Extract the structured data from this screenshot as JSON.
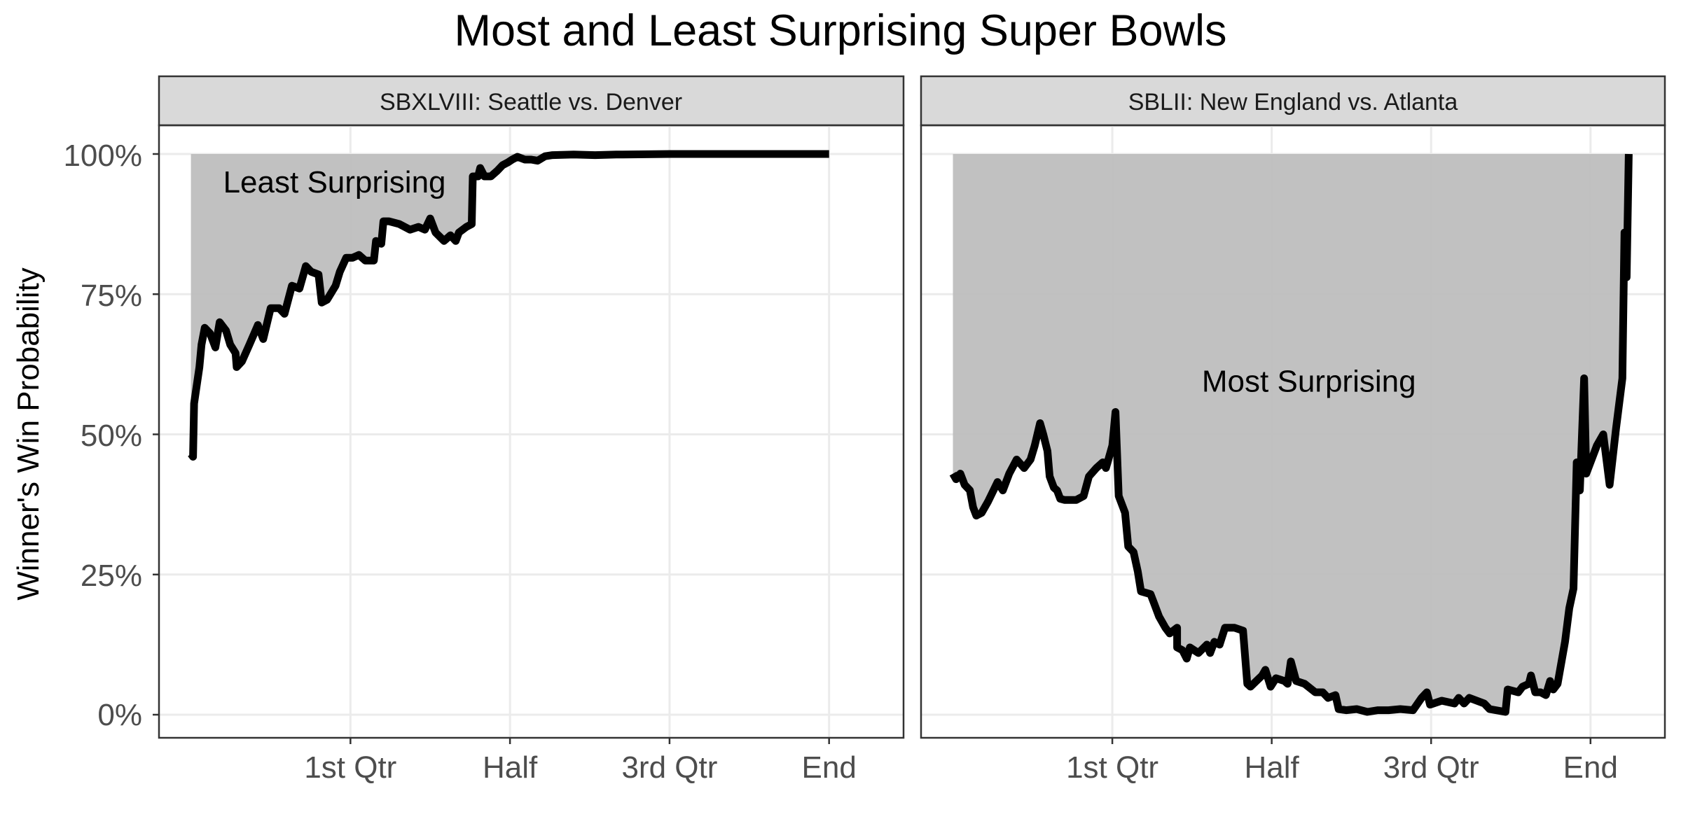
{
  "chart_data": {
    "type": "area",
    "title": "Most and Least Surprising Super Bowls",
    "ylabel": "Winner's Win Probability",
    "xlabel": "",
    "ylim": [
      0,
      1
    ],
    "yticks": [
      {
        "value": 0,
        "label": "0%"
      },
      {
        "value": 0.25,
        "label": "25%"
      },
      {
        "value": 0.5,
        "label": "50%"
      },
      {
        "value": 0.75,
        "label": "75%"
      },
      {
        "value": 1,
        "label": "100%"
      }
    ],
    "xticks": [
      {
        "value": 15,
        "label": "1st Qtr"
      },
      {
        "value": 30,
        "label": "Half"
      },
      {
        "value": 45,
        "label": "3rd Qtr"
      },
      {
        "value": 60,
        "label": "End"
      }
    ],
    "grid": true,
    "fill_color": "#bebebe",
    "line_color": "#000000",
    "panels": [
      {
        "strip": "SBXLVIII: Seattle vs. Denver",
        "annotation": "Least Surprising",
        "annotation_at": {
          "x": 13.5,
          "y": 0.95
        },
        "xlim": [
          -3,
          67
        ],
        "points": [
          [
            0,
            0.465
          ],
          [
            0.2,
            0.46
          ],
          [
            0.3,
            0.555
          ],
          [
            0.8,
            0.62
          ],
          [
            1.0,
            0.66
          ],
          [
            1.3,
            0.69
          ],
          [
            1.8,
            0.68
          ],
          [
            2.3,
            0.655
          ],
          [
            2.7,
            0.7
          ],
          [
            3.3,
            0.685
          ],
          [
            3.7,
            0.66
          ],
          [
            4.2,
            0.645
          ],
          [
            4.3,
            0.62
          ],
          [
            4.8,
            0.63
          ],
          [
            5.5,
            0.66
          ],
          [
            6.3,
            0.695
          ],
          [
            6.8,
            0.67
          ],
          [
            7.5,
            0.725
          ],
          [
            8.3,
            0.725
          ],
          [
            8.8,
            0.715
          ],
          [
            9.5,
            0.765
          ],
          [
            10.2,
            0.76
          ],
          [
            10.8,
            0.8
          ],
          [
            11.3,
            0.79
          ],
          [
            12.0,
            0.785
          ],
          [
            12.3,
            0.735
          ],
          [
            12.8,
            0.74
          ],
          [
            13.6,
            0.765
          ],
          [
            14.0,
            0.79
          ],
          [
            14.6,
            0.815
          ],
          [
            15.2,
            0.815
          ],
          [
            15.8,
            0.82
          ],
          [
            16.4,
            0.81
          ],
          [
            17.2,
            0.81
          ],
          [
            17.4,
            0.845
          ],
          [
            17.9,
            0.84
          ],
          [
            18.1,
            0.88
          ],
          [
            18.6,
            0.88
          ],
          [
            19.6,
            0.875
          ],
          [
            20.6,
            0.865
          ],
          [
            21.4,
            0.87
          ],
          [
            22.0,
            0.865
          ],
          [
            22.5,
            0.885
          ],
          [
            23.0,
            0.86
          ],
          [
            23.8,
            0.845
          ],
          [
            24.4,
            0.855
          ],
          [
            24.9,
            0.845
          ],
          [
            25.2,
            0.86
          ],
          [
            25.9,
            0.87
          ],
          [
            26.4,
            0.875
          ],
          [
            26.5,
            0.96
          ],
          [
            27.0,
            0.96
          ],
          [
            27.2,
            0.975
          ],
          [
            27.6,
            0.96
          ],
          [
            28.2,
            0.96
          ],
          [
            28.8,
            0.97
          ],
          [
            29.3,
            0.98
          ],
          [
            29.8,
            0.985
          ],
          [
            30.2,
            0.99
          ],
          [
            30.7,
            0.995
          ],
          [
            31.4,
            0.99
          ],
          [
            32.0,
            0.99
          ],
          [
            32.6,
            0.988
          ],
          [
            33.3,
            0.996
          ],
          [
            34.0,
            0.998
          ],
          [
            36.0,
            0.999
          ],
          [
            38.0,
            0.998
          ],
          [
            40.0,
            0.999
          ],
          [
            45.0,
            1.0
          ],
          [
            50.0,
            1.0
          ],
          [
            55.0,
            1.0
          ],
          [
            60.0,
            1.0
          ]
        ]
      },
      {
        "strip": "SBLII: New England vs. Atlanta",
        "annotation": "Most Surprising",
        "annotation_at": {
          "x": 33.5,
          "y": 0.595
        },
        "xlim": [
          -3,
          67
        ],
        "points": [
          [
            0,
            0.43
          ],
          [
            0.3,
            0.42
          ],
          [
            0.7,
            0.43
          ],
          [
            1.1,
            0.41
          ],
          [
            1.6,
            0.4
          ],
          [
            1.9,
            0.37
          ],
          [
            2.2,
            0.355
          ],
          [
            2.7,
            0.36
          ],
          [
            3.3,
            0.38
          ],
          [
            4.2,
            0.415
          ],
          [
            4.7,
            0.4
          ],
          [
            5.3,
            0.43
          ],
          [
            6.0,
            0.455
          ],
          [
            6.7,
            0.44
          ],
          [
            7.3,
            0.455
          ],
          [
            7.7,
            0.48
          ],
          [
            8.2,
            0.52
          ],
          [
            8.5,
            0.5
          ],
          [
            8.9,
            0.47
          ],
          [
            9.1,
            0.425
          ],
          [
            9.5,
            0.405
          ],
          [
            9.8,
            0.4
          ],
          [
            10.1,
            0.385
          ],
          [
            10.5,
            0.383
          ],
          [
            11.6,
            0.383
          ],
          [
            12.3,
            0.39
          ],
          [
            12.8,
            0.425
          ],
          [
            13.5,
            0.44
          ],
          [
            14.1,
            0.45
          ],
          [
            14.4,
            0.44
          ],
          [
            15.0,
            0.48
          ],
          [
            15.3,
            0.54
          ],
          [
            15.6,
            0.39
          ],
          [
            16.2,
            0.36
          ],
          [
            16.5,
            0.3
          ],
          [
            17.0,
            0.29
          ],
          [
            17.4,
            0.255
          ],
          [
            17.7,
            0.22
          ],
          [
            18.6,
            0.215
          ],
          [
            18.9,
            0.2
          ],
          [
            19.4,
            0.175
          ],
          [
            20.0,
            0.155
          ],
          [
            20.4,
            0.145
          ],
          [
            21.1,
            0.155
          ],
          [
            21.1,
            0.12
          ],
          [
            21.6,
            0.115
          ],
          [
            22.0,
            0.1
          ],
          [
            22.3,
            0.12
          ],
          [
            23.1,
            0.11
          ],
          [
            23.9,
            0.125
          ],
          [
            24.2,
            0.11
          ],
          [
            24.6,
            0.13
          ],
          [
            25.1,
            0.125
          ],
          [
            25.6,
            0.155
          ],
          [
            26.5,
            0.155
          ],
          [
            27.3,
            0.15
          ],
          [
            27.7,
            0.055
          ],
          [
            28.0,
            0.05
          ],
          [
            29.1,
            0.07
          ],
          [
            29.4,
            0.08
          ],
          [
            29.9,
            0.05
          ],
          [
            30.4,
            0.065
          ],
          [
            31.2,
            0.06
          ],
          [
            31.5,
            0.055
          ],
          [
            31.8,
            0.095
          ],
          [
            32.3,
            0.06
          ],
          [
            33.1,
            0.055
          ],
          [
            34.1,
            0.04
          ],
          [
            34.8,
            0.04
          ],
          [
            35.3,
            0.03
          ],
          [
            36.0,
            0.035
          ],
          [
            36.3,
            0.01
          ],
          [
            37.0,
            0.008
          ],
          [
            38.0,
            0.01
          ],
          [
            39.0,
            0.005
          ],
          [
            40.0,
            0.008
          ],
          [
            41.0,
            0.008
          ],
          [
            42.1,
            0.01
          ],
          [
            43.3,
            0.008
          ],
          [
            44.1,
            0.03
          ],
          [
            44.6,
            0.04
          ],
          [
            44.9,
            0.018
          ],
          [
            46.0,
            0.025
          ],
          [
            47.2,
            0.02
          ],
          [
            47.6,
            0.03
          ],
          [
            48.1,
            0.02
          ],
          [
            48.6,
            0.03
          ],
          [
            50.0,
            0.02
          ],
          [
            50.5,
            0.01
          ],
          [
            52.0,
            0.005
          ],
          [
            52.2,
            0.045
          ],
          [
            53.2,
            0.04
          ],
          [
            53.6,
            0.05
          ],
          [
            54.2,
            0.055
          ],
          [
            54.4,
            0.07
          ],
          [
            54.8,
            0.04
          ],
          [
            55.3,
            0.04
          ],
          [
            55.8,
            0.035
          ],
          [
            56.2,
            0.06
          ],
          [
            56.5,
            0.045
          ],
          [
            56.9,
            0.055
          ],
          [
            57.6,
            0.13
          ],
          [
            58.0,
            0.19
          ],
          [
            58.4,
            0.225
          ],
          [
            58.7,
            0.45
          ],
          [
            59.0,
            0.4
          ],
          [
            59.4,
            0.6
          ],
          [
            59.6,
            0.43
          ],
          [
            60.6,
            0.48
          ],
          [
            61.2,
            0.5
          ],
          [
            61.8,
            0.41
          ],
          [
            62.4,
            0.51
          ],
          [
            63.0,
            0.6
          ],
          [
            63.2,
            0.86
          ],
          [
            63.4,
            0.78
          ],
          [
            63.6,
            1.0
          ]
        ]
      }
    ]
  }
}
